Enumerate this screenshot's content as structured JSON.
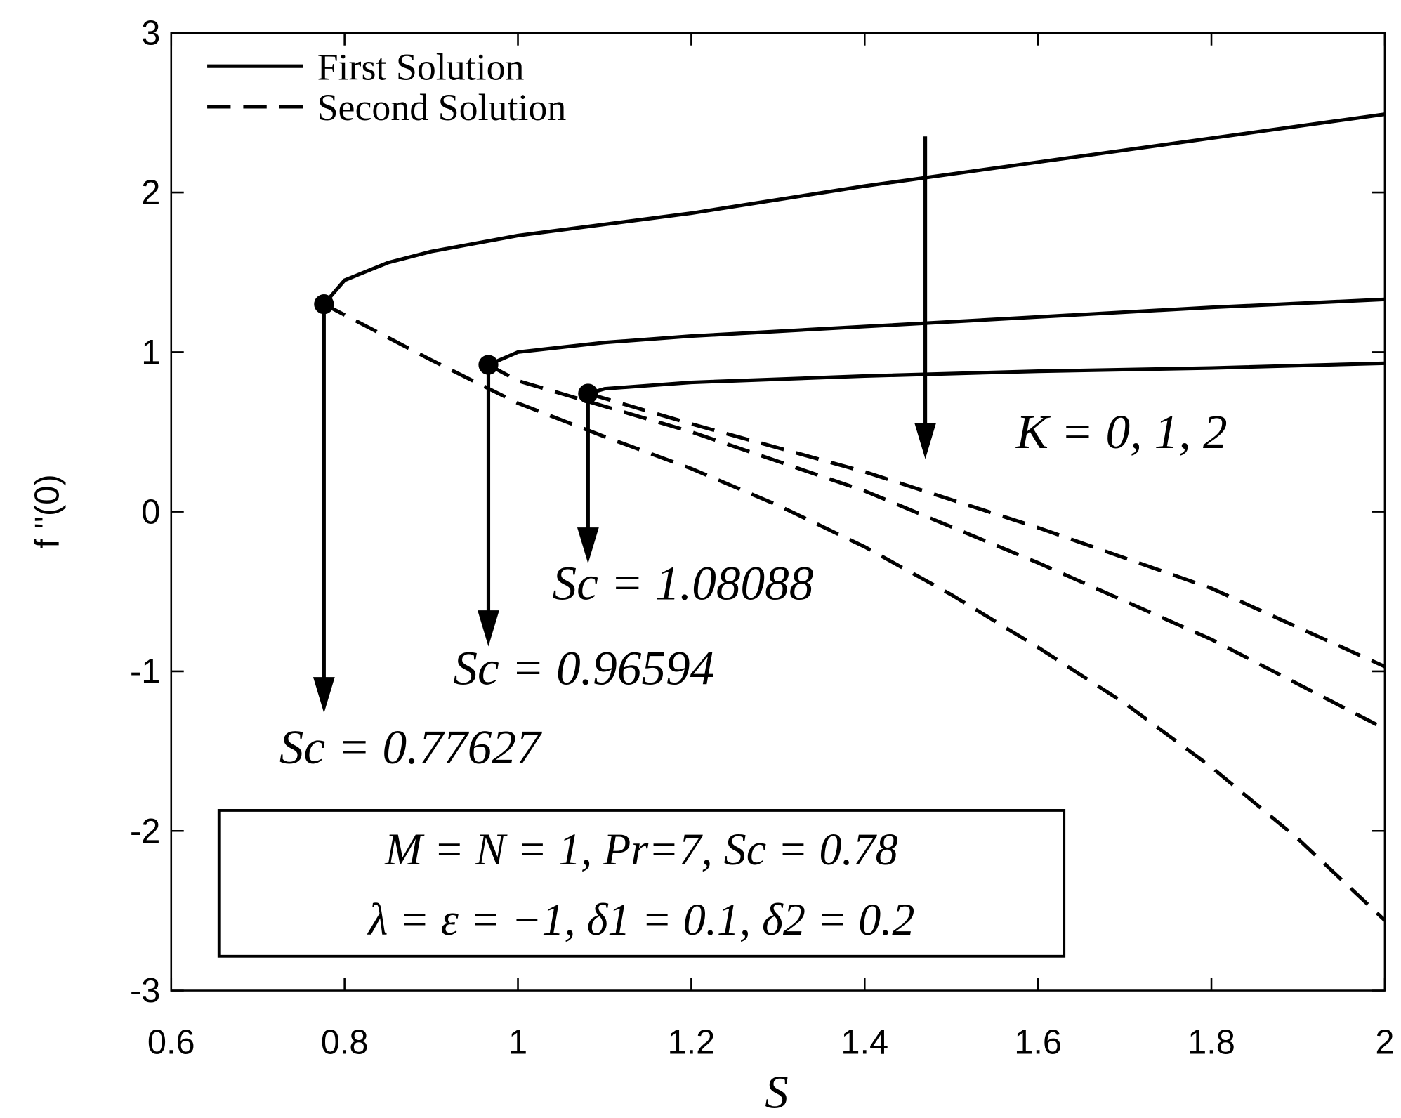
{
  "chart_data": {
    "type": "line",
    "xlabel": "S",
    "ylabel": "f ''(0)",
    "xlim": [
      0.6,
      2
    ],
    "ylim": [
      -3,
      3
    ],
    "xticks": [
      0.6,
      0.8,
      1,
      1.2,
      1.4,
      1.6,
      1.8,
      2
    ],
    "yticks": [
      -3,
      -2,
      -1,
      0,
      1,
      2,
      3
    ],
    "legend": "upper left",
    "series": [
      {
        "name": "First Solution",
        "color": "#000000",
        "dash": false,
        "curves": [
          {
            "x": [
              0.77627,
              0.8,
              0.85,
              0.9,
              1.0,
              1.2,
              1.4,
              1.6,
              1.8,
              2.0
            ],
            "values": [
              1.3,
              1.45,
              1.56,
              1.63,
              1.73,
              1.87,
              2.04,
              2.19,
              2.34,
              2.49
            ]
          },
          {
            "x": [
              0.96594,
              1.0,
              1.1,
              1.2,
              1.4,
              1.6,
              1.8,
              2.0
            ],
            "values": [
              0.92,
              1.0,
              1.06,
              1.1,
              1.16,
              1.22,
              1.28,
              1.33
            ]
          },
          {
            "x": [
              1.08088,
              1.1,
              1.2,
              1.4,
              1.6,
              1.8,
              2.0
            ],
            "values": [
              0.74,
              0.77,
              0.81,
              0.85,
              0.88,
              0.9,
              0.93
            ]
          }
        ]
      },
      {
        "name": "Second Solution",
        "color": "#000000",
        "dash": true,
        "curves": [
          {
            "x": [
              0.77627,
              0.9,
              1.0,
              1.1,
              1.2,
              1.3,
              1.4,
              1.5,
              1.6,
              1.7,
              1.8,
              1.9,
              2.0
            ],
            "values": [
              1.3,
              0.95,
              0.68,
              0.47,
              0.27,
              0.04,
              -0.22,
              -0.52,
              -0.85,
              -1.2,
              -1.6,
              -2.05,
              -2.56
            ]
          },
          {
            "x": [
              0.96594,
              1.0,
              1.2,
              1.4,
              1.6,
              1.8,
              2.0
            ],
            "values": [
              0.92,
              0.82,
              0.5,
              0.13,
              -0.32,
              -0.8,
              -1.36
            ]
          },
          {
            "x": [
              1.08088,
              1.2,
              1.4,
              1.6,
              1.8,
              2.0
            ],
            "values": [
              0.74,
              0.55,
              0.25,
              -0.1,
              -0.48,
              -0.97
            ]
          }
        ]
      }
    ],
    "annotations": [
      "K = 0, 1, 2",
      "Sc = 1.08088",
      "Sc = 0.96594",
      "Sc = 0.77627"
    ],
    "parameter_box": [
      "M = N = 1, Pr=7, Sc = 0.78",
      "λ = ε = −1, δ1 = 0.1, δ2 = 0.2"
    ]
  }
}
